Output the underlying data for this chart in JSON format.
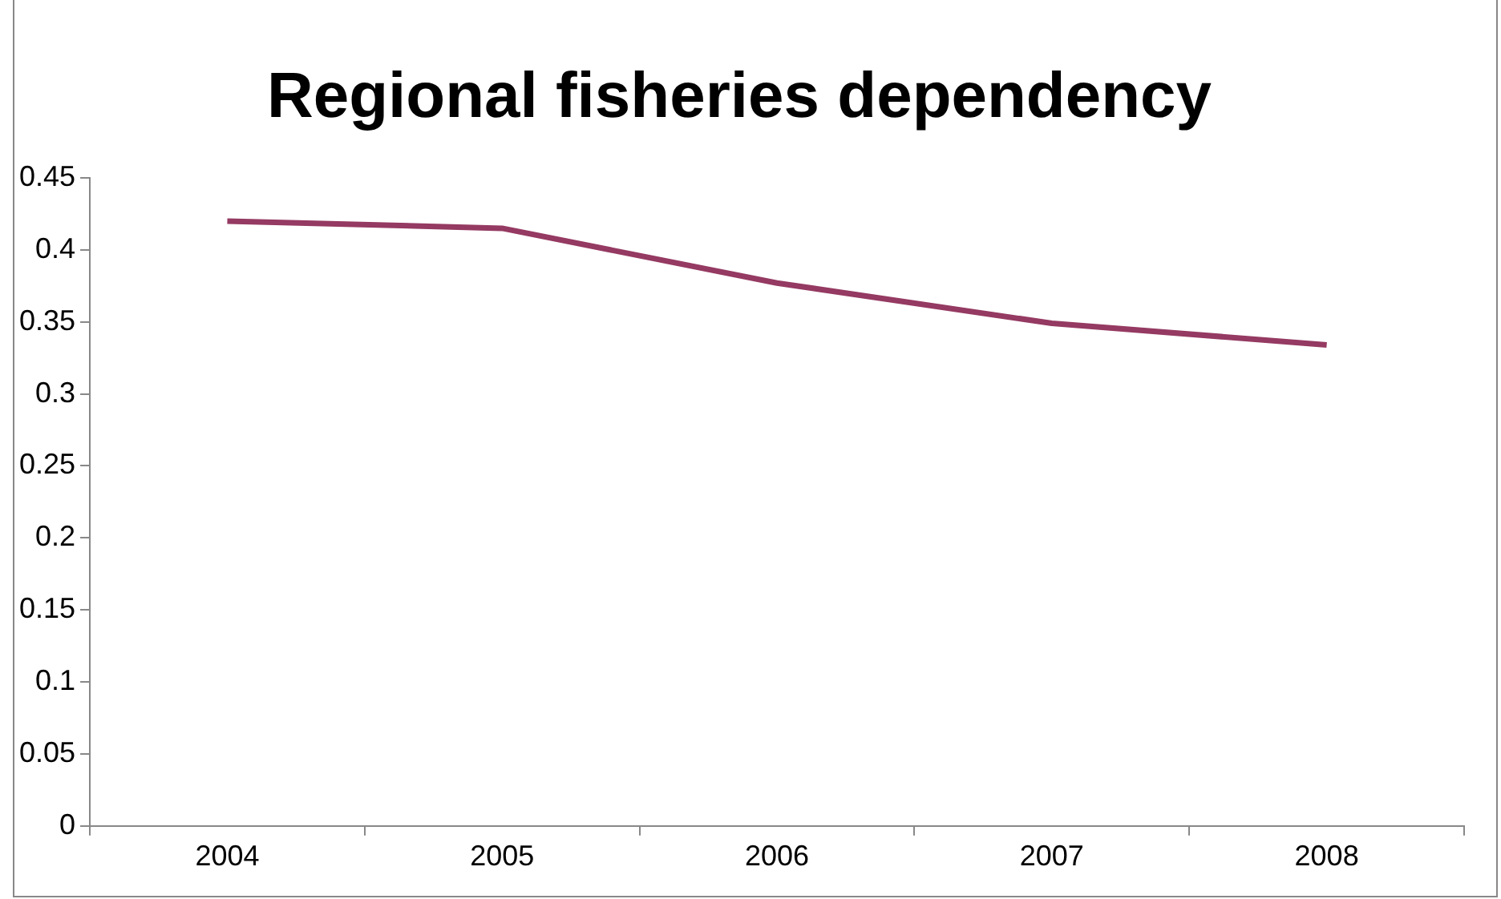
{
  "chart_data": {
    "type": "line",
    "title": "Regional fisheries dependency",
    "categories": [
      "2004",
      "2005",
      "2006",
      "2007",
      "2008"
    ],
    "series": [
      {
        "color": "#953a62",
        "values": [
          0.42,
          0.415,
          0.377,
          0.349,
          0.334
        ]
      }
    ],
    "ylim": [
      0,
      0.45
    ],
    "yticks": [
      0,
      0.05,
      0.1,
      0.15,
      0.2,
      0.25,
      0.3,
      0.35,
      0.4,
      0.45
    ],
    "legend": false,
    "marker": "none"
  }
}
